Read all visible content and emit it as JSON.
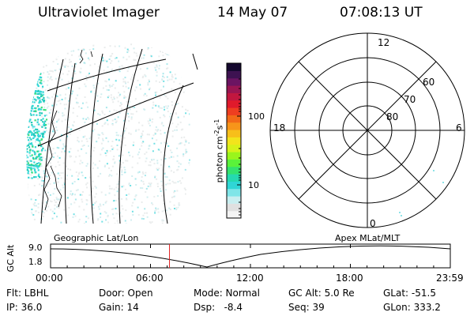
{
  "header": {
    "title": "Ultraviolet Imager",
    "date": "14 May 07",
    "time": "07:08:13 UT"
  },
  "colorbar": {
    "label": "photon cm",
    "label_exp1": "-2",
    "label_mid": "s",
    "label_exp2": "-1",
    "ticks": [
      {
        "value": 100,
        "label": "100"
      },
      {
        "value": 10,
        "label": "10"
      }
    ],
    "colors": [
      "#f4f4f4",
      "#e0e0e0",
      "#c8eef0",
      "#7fe5e8",
      "#2fd6d6",
      "#25d9b0",
      "#33e26f",
      "#5af23a",
      "#9af51c",
      "#d6f21a",
      "#f2e41c",
      "#f7bf1a",
      "#f7951a",
      "#f26a18",
      "#ee3e20",
      "#e01a2b",
      "#c2173f",
      "#9a1552",
      "#6b1462",
      "#3d1251",
      "#14082e"
    ]
  },
  "polar": {
    "mlt_labels": {
      "top": "12",
      "left": "18",
      "right": "6",
      "bottom": "0"
    },
    "lat_labels": [
      "60",
      "70",
      "80"
    ]
  },
  "timeline": {
    "left_label": "Geographic Lat/Lon",
    "right_label": "Apex  MLat/MLT",
    "y_axis_label": "GC Alt",
    "y_ticks": [
      "9.0",
      "1.8"
    ],
    "x_ticks": [
      "00:00",
      "06:00",
      "12:00",
      "18:00",
      "23:59"
    ],
    "current_time_hours": 7.14
  },
  "footer": {
    "row1": [
      {
        "name": "filter",
        "text": "Flt: LBHL"
      },
      {
        "name": "door",
        "text": "Door: Open"
      },
      {
        "name": "mode",
        "text": "Mode: Normal"
      },
      {
        "name": "gc-alt",
        "text": "GC Alt: 5.0 Re"
      },
      {
        "name": "glat",
        "text": "GLat: -51.5"
      }
    ],
    "row2": [
      {
        "name": "ip",
        "text": "IP: 36.0"
      },
      {
        "name": "gain",
        "text": "Gain: 14"
      },
      {
        "name": "dsp",
        "text": "Dsp:   -8.4"
      },
      {
        "name": "seq",
        "text": "Seq: 39"
      },
      {
        "name": "glon",
        "text": "GLon: 333.2"
      }
    ]
  }
}
